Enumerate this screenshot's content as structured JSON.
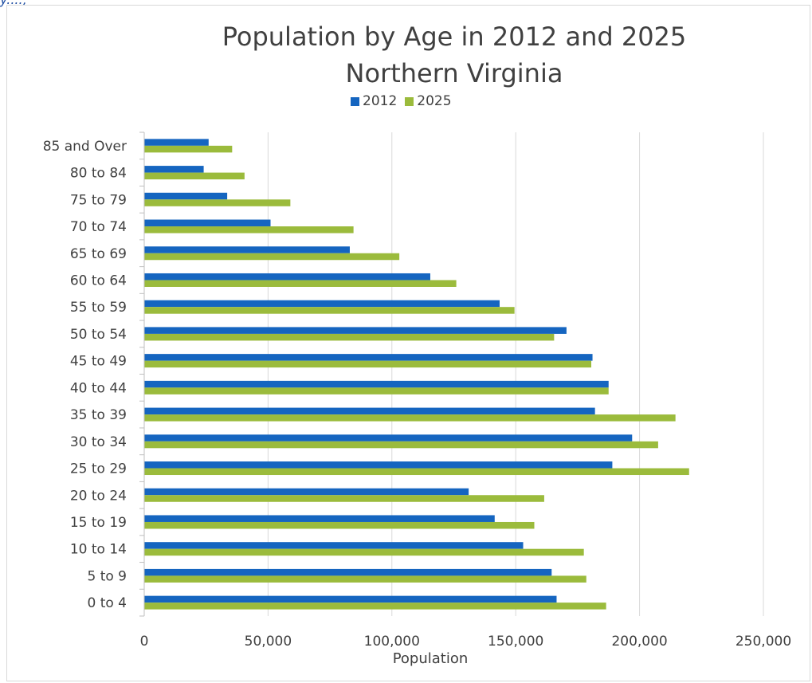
{
  "header_fragment": "y....,",
  "chart_data": {
    "type": "bar",
    "orientation": "horizontal",
    "title": "Population by Age in 2012 and 2025",
    "subtitle": "Northern Virginia",
    "xlabel": "Population",
    "ylabel": "",
    "xlim": [
      0,
      250000
    ],
    "x_ticks": [
      0,
      50000,
      100000,
      150000,
      200000,
      250000
    ],
    "x_tick_labels": [
      "0",
      "50,000",
      "100,000",
      "150,000",
      "200,000",
      "250,000"
    ],
    "grid": true,
    "legend_position": "top",
    "categories": [
      "85 and Over",
      "80 to 84",
      "75 to 79",
      "70 to 74",
      "65 to 69",
      "60 to 64",
      "55 to 59",
      "50 to 54",
      "45 to 49",
      "40 to 44",
      "35 to 39",
      "30 to 34",
      "25 to 29",
      "20 to 24",
      "15 to 19",
      "10 to 14",
      "5 to 9",
      "0 to 4"
    ],
    "series": [
      {
        "name": "2012",
        "color": "#1565c0",
        "values": [
          26000,
          24000,
          33500,
          51000,
          83000,
          115500,
          143500,
          170500,
          181000,
          187500,
          182000,
          197000,
          189000,
          131000,
          141500,
          153000,
          164500,
          166500
        ]
      },
      {
        "name": "2025",
        "color": "#9bbb3c",
        "values": [
          35500,
          40500,
          59000,
          84500,
          103000,
          126000,
          149500,
          165500,
          180500,
          187500,
          214500,
          207500,
          220000,
          161500,
          157500,
          177500,
          178500,
          186500
        ]
      }
    ]
  }
}
